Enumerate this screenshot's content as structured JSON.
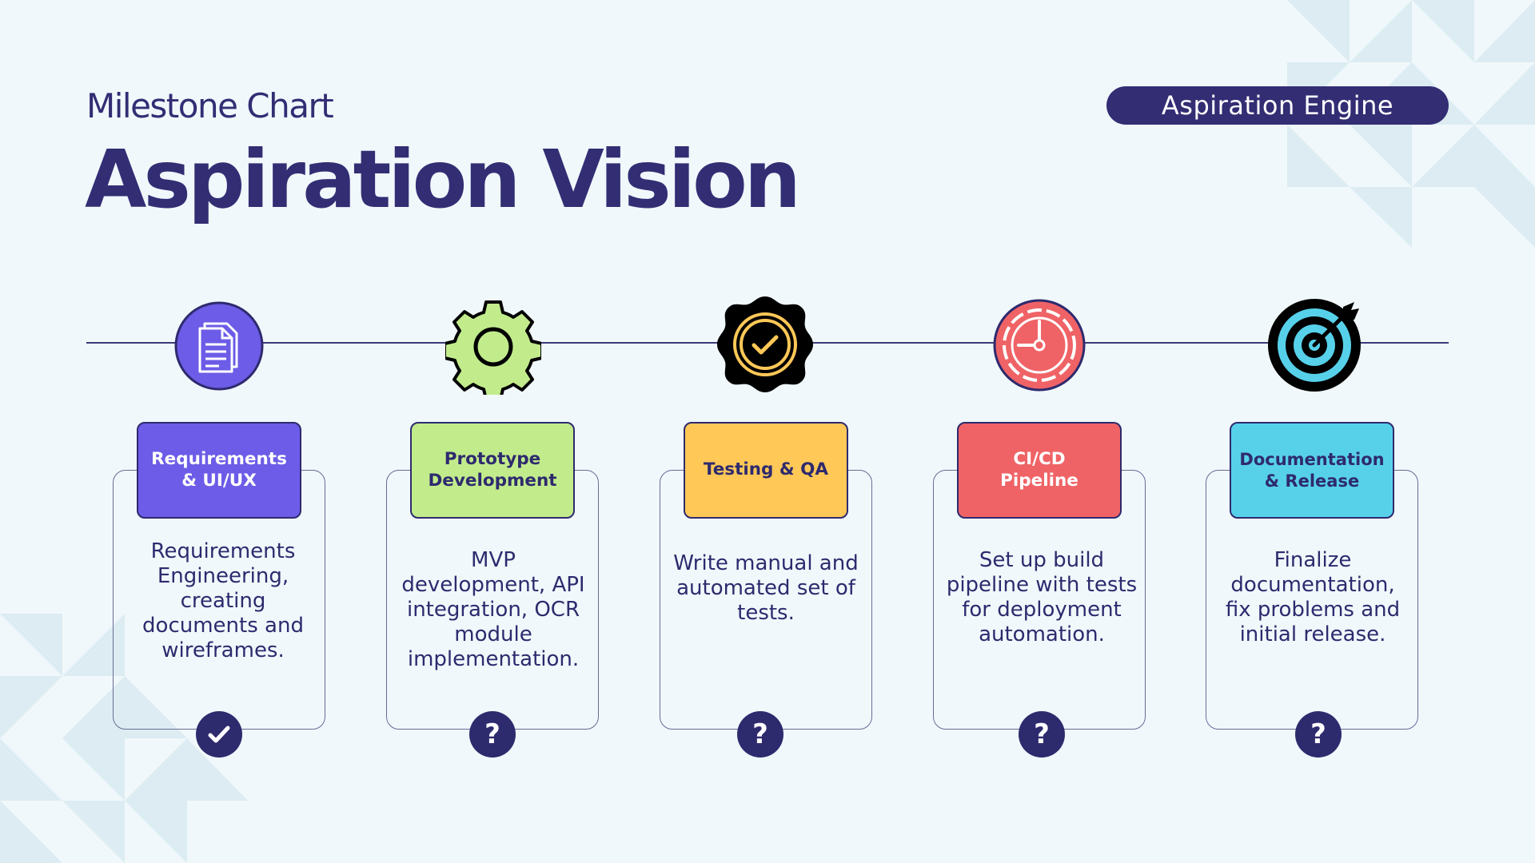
{
  "header": {
    "subtitle": "Milestone Chart",
    "title": "Aspiration Vision",
    "badge": "Aspiration Engine"
  },
  "colors": {
    "primary": "#2e2a6e",
    "background": "#f0f8fb",
    "requirements": "#6c5ce7",
    "prototype": "#c2ec8c",
    "testing": "#ffc857",
    "cicd": "#ef6366",
    "documentation": "#57d1ea"
  },
  "milestones": [
    {
      "label": "Requirements\n& UI/UX",
      "description": "Requirements Engineering, creating documents and wireframes.",
      "icon": "document-icon",
      "status": "completed",
      "status_glyph": "✔"
    },
    {
      "label": "Prototype\nDevelopment",
      "description": "MVP development, API integration, OCR module implementation.",
      "icon": "gear-icon",
      "status": "pending",
      "status_glyph": "?"
    },
    {
      "label": "Testing & QA",
      "description": "Write manual and automated set of tests.",
      "icon": "badge-check-icon",
      "status": "pending",
      "status_glyph": "?"
    },
    {
      "label": "CI/CD\nPipeline",
      "description": "Set up build pipeline with tests for deployment automation.",
      "icon": "timer-icon",
      "status": "pending",
      "status_glyph": "?"
    },
    {
      "label": "Documentation\n& Release",
      "description": "Finalize documentation, fix problems and initial release.",
      "icon": "target-icon",
      "status": "pending",
      "status_glyph": "?"
    }
  ]
}
